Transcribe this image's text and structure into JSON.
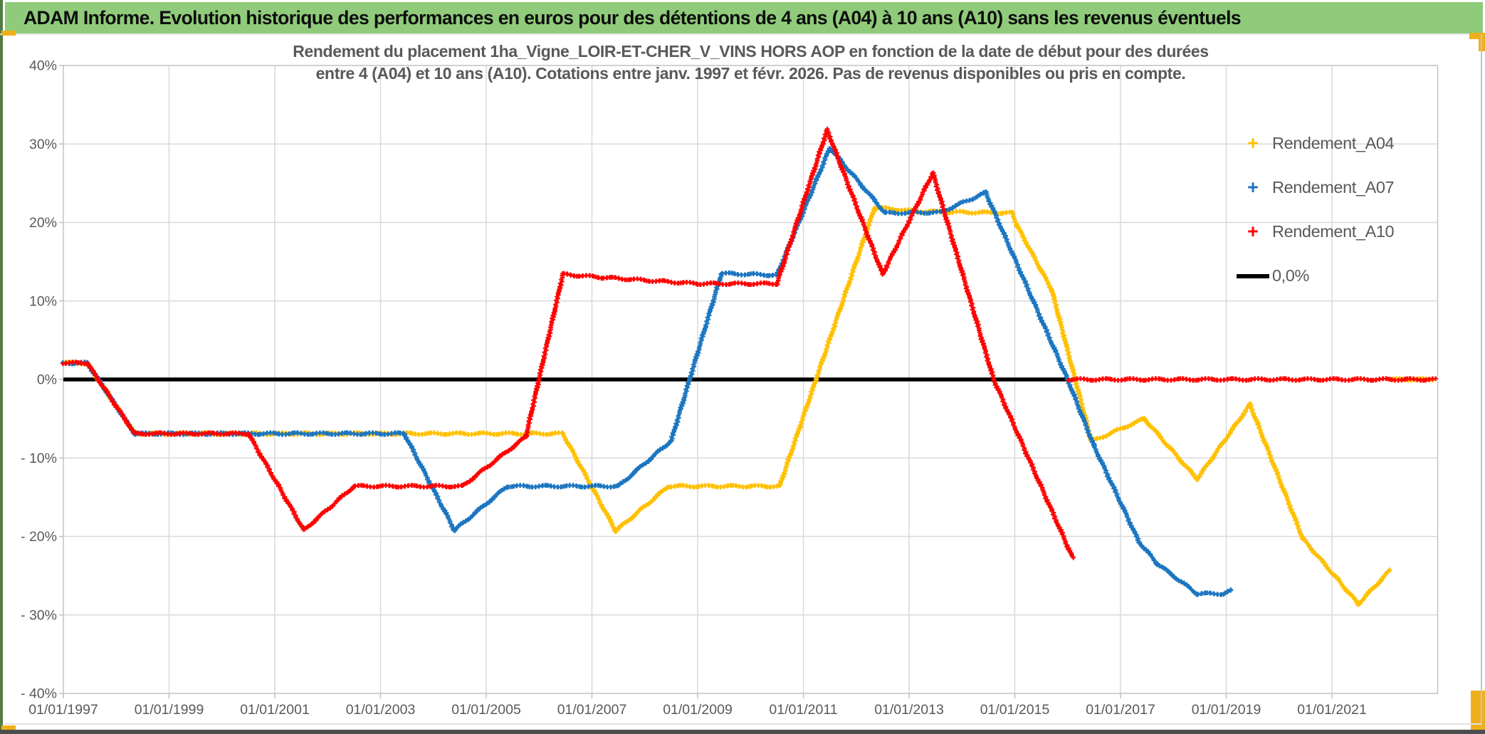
{
  "window": {
    "title": "ADAM Informe. Evolution historique des performances en euros pour des détentions de 4 ans (A04) à 10 ans (A10) sans les revenus éventuels",
    "title_bg_color": "#8FCB7B",
    "accent_color": "#EFAF1C"
  },
  "chart_data": {
    "type": "scatter",
    "marker": "plus",
    "subtitle_line1": "Rendement du placement 1ha_Vigne_LOIR-ET-CHER_V_VINS HORS AOP en fonction de la date de début pour des durées",
    "subtitle_line2": "entre 4 (A04) et 10 ans (A10). Cotations entre janv. 1997 et févr. 2026. Pas de revenus disponibles ou pris en compte.",
    "x_axis": {
      "tick_labels": [
        "01/01/1997",
        "01/01/1999",
        "01/01/2001",
        "01/01/2003",
        "01/01/2005",
        "01/01/2007",
        "01/01/2009",
        "01/01/2011",
        "01/01/2013",
        "01/01/2015",
        "01/01/2017",
        "01/01/2019",
        "01/01/2021"
      ],
      "tick_years": [
        1997,
        1999,
        2001,
        2003,
        2005,
        2007,
        2009,
        2011,
        2013,
        2015,
        2017,
        2019,
        2021
      ],
      "xlim_years": [
        1997.0,
        2023.0
      ]
    },
    "y_axis": {
      "tick_labels": [
        "40%",
        "30%",
        "20%",
        "10%",
        "0%",
        "- 10%",
        "- 20%",
        "- 30%",
        "- 40%"
      ],
      "tick_values": [
        40,
        30,
        20,
        10,
        0,
        -10,
        -20,
        -30,
        -40
      ],
      "ylim": [
        -40,
        40
      ],
      "unit": "%"
    },
    "grid": "on",
    "legend_position": "inside-top-right",
    "zero_line": {
      "label": "0,0%",
      "color": "#000000",
      "value": 0,
      "x_start": 1997.0,
      "x_end": 2016.0
    },
    "series": [
      {
        "name": "Rendement_A04",
        "color": "#FFC000",
        "points": [
          [
            1997.0,
            2.1
          ],
          [
            1997.45,
            2.1
          ],
          [
            1998.35,
            -6.9
          ],
          [
            2006.45,
            -6.9
          ],
          [
            2007.45,
            -19.3
          ],
          [
            2008.45,
            -13.6
          ],
          [
            2010.55,
            -13.6
          ],
          [
            2012.35,
            21.9
          ],
          [
            2013.2,
            21.4
          ],
          [
            2014.95,
            21.2
          ],
          [
            2015.05,
            19.5
          ],
          [
            2015.7,
            11.4
          ],
          [
            2016.45,
            -7.9
          ],
          [
            2017.45,
            -5.0
          ],
          [
            2018.45,
            -12.7
          ],
          [
            2019.45,
            -3.2
          ],
          [
            2020.45,
            -20.3
          ],
          [
            2021.1,
            -25.4
          ],
          [
            2021.5,
            -28.6
          ],
          [
            2022.1,
            -24.3
          ]
        ],
        "zero_tail": [
          2022.1,
          2022.9
        ]
      },
      {
        "name": "Rendement_A07",
        "color": "#1B75C0",
        "points": [
          [
            1997.0,
            2.1
          ],
          [
            1997.45,
            2.1
          ],
          [
            1998.35,
            -6.9
          ],
          [
            2003.45,
            -6.9
          ],
          [
            2004.4,
            -19.2
          ],
          [
            2005.4,
            -13.6
          ],
          [
            2007.5,
            -13.6
          ],
          [
            2008.5,
            -7.8
          ],
          [
            2009.45,
            13.5
          ],
          [
            2010.5,
            13.3
          ],
          [
            2011.5,
            29.5
          ],
          [
            2012.55,
            21.2
          ],
          [
            2013.6,
            21.3
          ],
          [
            2014.45,
            23.8
          ],
          [
            2016.0,
            0.0
          ],
          [
            2016.5,
            -8.5
          ],
          [
            2017.35,
            -20.7
          ],
          [
            2017.7,
            -23.5
          ],
          [
            2018.45,
            -27.3
          ],
          [
            2018.95,
            -27.3
          ],
          [
            2019.1,
            -26.9
          ]
        ],
        "zero_tail": null
      },
      {
        "name": "Rendement_A10",
        "color": "#FF0000",
        "points": [
          [
            1997.0,
            2.1
          ],
          [
            1997.45,
            2.1
          ],
          [
            1998.35,
            -6.9
          ],
          [
            2000.5,
            -6.9
          ],
          [
            2001.55,
            -19.2
          ],
          [
            2002.5,
            -13.6
          ],
          [
            2004.55,
            -13.6
          ],
          [
            2005.75,
            -7.3
          ],
          [
            2006.45,
            13.4
          ],
          [
            2007.2,
            13.0
          ],
          [
            2009.0,
            12.2
          ],
          [
            2010.5,
            12.2
          ],
          [
            2011.45,
            31.8
          ],
          [
            2012.5,
            13.4
          ],
          [
            2013.45,
            26.3
          ],
          [
            2014.6,
            0.0
          ],
          [
            2016.1,
            -22.8
          ]
        ],
        "zero_tail": [
          2016.0,
          2022.95
        ]
      }
    ]
  }
}
